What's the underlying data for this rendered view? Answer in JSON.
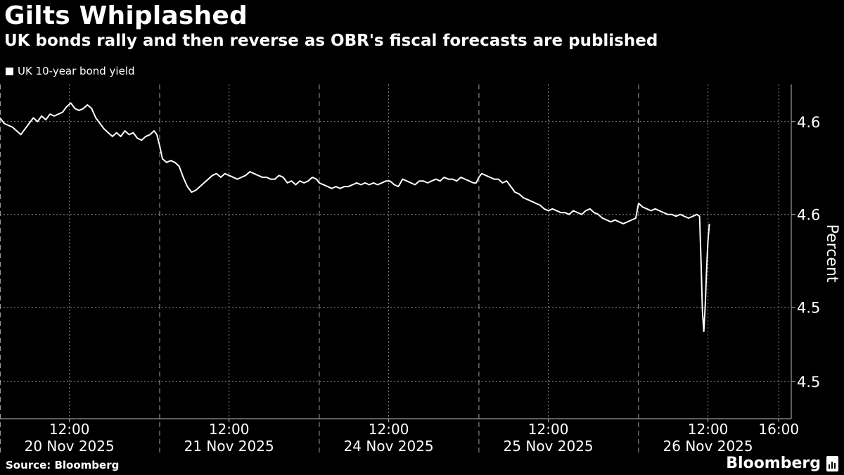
{
  "header": {
    "title": "Gilts Whiplashed",
    "subtitle": "UK bonds rally and then reverse as OBR's fiscal forecasts are published"
  },
  "legend": {
    "label": "UK 10-year bond yield",
    "swatch_color": "#ffffff"
  },
  "footer": {
    "source": "Source: Bloomberg",
    "brand": "Bloomberg",
    "brand_icon": "bloomberg-chart-icon"
  },
  "chart_data": {
    "type": "line",
    "title": "Gilts Whiplashed",
    "subtitle": "UK bonds rally and then reverse as OBR's fiscal forecasts are published",
    "xlabel": "",
    "ylabel": "Percent",
    "ylim": [
      4.45,
      4.63
    ],
    "yticks": [
      4.47,
      4.51,
      4.56,
      4.61
    ],
    "ytick_labels": [
      "4.5",
      "4.5",
      "4.6",
      "4.6"
    ],
    "xlim": [
      0,
      114
    ],
    "xticks": [
      {
        "x": 10,
        "top": "12:00",
        "bottom": "20 Nov 2025"
      },
      {
        "x": 33,
        "top": "12:00",
        "bottom": "21 Nov 2025"
      },
      {
        "x": 56,
        "top": "12:00",
        "bottom": "24 Nov 2025"
      },
      {
        "x": 79,
        "top": "12:00",
        "bottom": "25 Nov 2025"
      },
      {
        "x": 102,
        "top": "12:00",
        "bottom": "26 Nov 2025"
      },
      {
        "x": 112.2,
        "top": "16:00",
        "bottom": ""
      }
    ],
    "day_separators": [
      23,
      46,
      69,
      92
    ],
    "grid": true,
    "legend_position": "top-left",
    "line_color": "#ffffff",
    "series": [
      {
        "name": "UK 10-year bond yield",
        "points": [
          [
            0.0,
            4.612
          ],
          [
            0.6,
            4.609
          ],
          [
            1.2,
            4.608
          ],
          [
            1.8,
            4.607
          ],
          [
            2.4,
            4.605
          ],
          [
            3.0,
            4.603
          ],
          [
            3.6,
            4.606
          ],
          [
            4.2,
            4.609
          ],
          [
            4.8,
            4.612
          ],
          [
            5.4,
            4.61
          ],
          [
            6.0,
            4.613
          ],
          [
            6.6,
            4.611
          ],
          [
            7.2,
            4.614
          ],
          [
            7.8,
            4.613
          ],
          [
            8.4,
            4.614
          ],
          [
            9.0,
            4.615
          ],
          [
            9.6,
            4.618
          ],
          [
            10.2,
            4.62
          ],
          [
            10.8,
            4.617
          ],
          [
            11.4,
            4.616
          ],
          [
            12.0,
            4.617
          ],
          [
            12.6,
            4.619
          ],
          [
            13.2,
            4.617
          ],
          [
            13.8,
            4.612
          ],
          [
            14.4,
            4.609
          ],
          [
            15.0,
            4.606
          ],
          [
            15.6,
            4.604
          ],
          [
            16.2,
            4.602
          ],
          [
            16.8,
            4.604
          ],
          [
            17.4,
            4.602
          ],
          [
            18.0,
            4.605
          ],
          [
            18.6,
            4.603
          ],
          [
            19.2,
            4.604
          ],
          [
            19.8,
            4.601
          ],
          [
            20.4,
            4.6
          ],
          [
            21.0,
            4.602
          ],
          [
            21.6,
            4.603
          ],
          [
            22.2,
            4.605
          ],
          [
            22.6,
            4.603
          ],
          [
            23.0,
            4.597
          ],
          [
            23.4,
            4.59
          ],
          [
            24.0,
            4.588
          ],
          [
            24.6,
            4.589
          ],
          [
            25.2,
            4.588
          ],
          [
            25.8,
            4.586
          ],
          [
            26.4,
            4.58
          ],
          [
            27.0,
            4.575
          ],
          [
            27.6,
            4.572
          ],
          [
            28.2,
            4.573
          ],
          [
            28.8,
            4.575
          ],
          [
            29.4,
            4.577
          ],
          [
            30.0,
            4.579
          ],
          [
            30.6,
            4.581
          ],
          [
            31.2,
            4.582
          ],
          [
            31.8,
            4.58
          ],
          [
            32.4,
            4.582
          ],
          [
            33.0,
            4.581
          ],
          [
            33.6,
            4.58
          ],
          [
            34.2,
            4.579
          ],
          [
            34.8,
            4.58
          ],
          [
            35.4,
            4.581
          ],
          [
            36.0,
            4.583
          ],
          [
            36.6,
            4.582
          ],
          [
            37.2,
            4.581
          ],
          [
            37.8,
            4.58
          ],
          [
            38.4,
            4.58
          ],
          [
            39.0,
            4.579
          ],
          [
            39.6,
            4.579
          ],
          [
            40.2,
            4.581
          ],
          [
            40.8,
            4.58
          ],
          [
            41.4,
            4.577
          ],
          [
            42.0,
            4.578
          ],
          [
            42.6,
            4.576
          ],
          [
            43.2,
            4.578
          ],
          [
            43.8,
            4.577
          ],
          [
            44.4,
            4.578
          ],
          [
            45.0,
            4.58
          ],
          [
            45.6,
            4.579
          ],
          [
            46.0,
            4.577
          ],
          [
            46.6,
            4.576
          ],
          [
            47.2,
            4.575
          ],
          [
            47.8,
            4.574
          ],
          [
            48.4,
            4.575
          ],
          [
            49.0,
            4.574
          ],
          [
            49.6,
            4.575
          ],
          [
            50.2,
            4.575
          ],
          [
            50.8,
            4.576
          ],
          [
            51.4,
            4.577
          ],
          [
            52.0,
            4.576
          ],
          [
            52.6,
            4.577
          ],
          [
            53.2,
            4.576
          ],
          [
            53.8,
            4.577
          ],
          [
            54.4,
            4.576
          ],
          [
            55.0,
            4.577
          ],
          [
            55.6,
            4.578
          ],
          [
            56.2,
            4.578
          ],
          [
            56.8,
            4.576
          ],
          [
            57.4,
            4.575
          ],
          [
            58.0,
            4.579
          ],
          [
            58.6,
            4.578
          ],
          [
            59.2,
            4.577
          ],
          [
            59.8,
            4.576
          ],
          [
            60.4,
            4.578
          ],
          [
            61.0,
            4.578
          ],
          [
            61.6,
            4.577
          ],
          [
            62.2,
            4.578
          ],
          [
            62.8,
            4.579
          ],
          [
            63.4,
            4.578
          ],
          [
            64.0,
            4.58
          ],
          [
            64.6,
            4.579
          ],
          [
            65.2,
            4.579
          ],
          [
            65.8,
            4.578
          ],
          [
            66.4,
            4.58
          ],
          [
            67.0,
            4.579
          ],
          [
            67.6,
            4.578
          ],
          [
            68.2,
            4.577
          ],
          [
            68.6,
            4.577
          ],
          [
            69.0,
            4.58
          ],
          [
            69.4,
            4.582
          ],
          [
            70.0,
            4.581
          ],
          [
            70.6,
            4.58
          ],
          [
            71.2,
            4.579
          ],
          [
            71.8,
            4.579
          ],
          [
            72.4,
            4.577
          ],
          [
            73.0,
            4.578
          ],
          [
            73.6,
            4.575
          ],
          [
            74.2,
            4.572
          ],
          [
            74.8,
            4.571
          ],
          [
            75.4,
            4.569
          ],
          [
            76.0,
            4.568
          ],
          [
            76.6,
            4.567
          ],
          [
            77.2,
            4.566
          ],
          [
            77.8,
            4.565
          ],
          [
            78.4,
            4.563
          ],
          [
            79.0,
            4.562
          ],
          [
            79.6,
            4.563
          ],
          [
            80.2,
            4.562
          ],
          [
            80.8,
            4.561
          ],
          [
            81.4,
            4.561
          ],
          [
            82.0,
            4.56
          ],
          [
            82.6,
            4.562
          ],
          [
            83.2,
            4.561
          ],
          [
            83.8,
            4.56
          ],
          [
            84.4,
            4.562
          ],
          [
            85.0,
            4.563
          ],
          [
            85.6,
            4.561
          ],
          [
            86.2,
            4.56
          ],
          [
            86.8,
            4.558
          ],
          [
            87.4,
            4.557
          ],
          [
            88.0,
            4.556
          ],
          [
            88.6,
            4.557
          ],
          [
            89.2,
            4.556
          ],
          [
            89.8,
            4.555
          ],
          [
            90.4,
            4.556
          ],
          [
            91.0,
            4.557
          ],
          [
            91.6,
            4.558
          ],
          [
            92.0,
            4.566
          ],
          [
            92.6,
            4.564
          ],
          [
            93.2,
            4.563
          ],
          [
            93.8,
            4.562
          ],
          [
            94.4,
            4.563
          ],
          [
            95.0,
            4.562
          ],
          [
            95.6,
            4.561
          ],
          [
            96.2,
            4.56
          ],
          [
            96.8,
            4.56
          ],
          [
            97.4,
            4.559
          ],
          [
            98.0,
            4.56
          ],
          [
            98.6,
            4.559
          ],
          [
            99.2,
            4.558
          ],
          [
            99.8,
            4.559
          ],
          [
            100.4,
            4.56
          ],
          [
            100.8,
            4.559
          ],
          [
            101.0,
            4.535
          ],
          [
            101.2,
            4.508
          ],
          [
            101.4,
            4.497
          ],
          [
            101.6,
            4.51
          ],
          [
            101.8,
            4.53
          ],
          [
            102.0,
            4.546
          ],
          [
            102.2,
            4.555
          ]
        ]
      }
    ]
  }
}
